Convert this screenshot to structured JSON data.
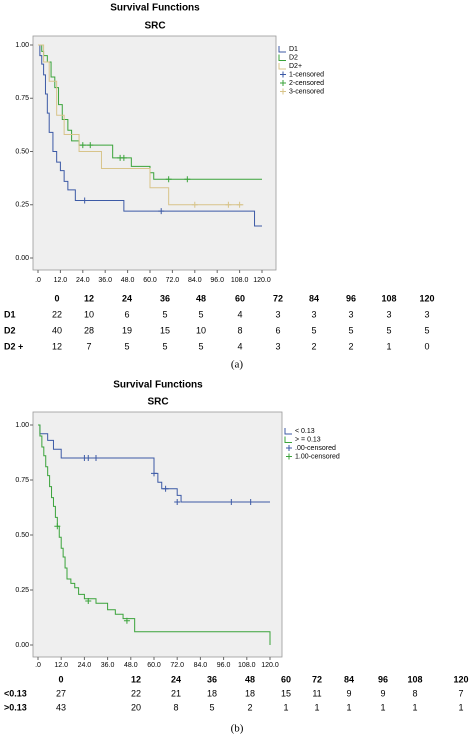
{
  "chart_data": [
    {
      "type": "step",
      "title": "Survival Functions",
      "subtitle": "SRC",
      "xlim": [
        0,
        120
      ],
      "ylim": [
        0,
        1
      ],
      "xticks": [
        {
          "value": 0,
          "label": ".0"
        },
        {
          "value": 12,
          "label": "12.0"
        },
        {
          "value": 24,
          "label": "24.0"
        },
        {
          "value": 36,
          "label": "36.0"
        },
        {
          "value": 48,
          "label": "48.0"
        },
        {
          "value": 60,
          "label": "60.0"
        },
        {
          "value": 72,
          "label": "72.0"
        },
        {
          "value": 84,
          "label": "84.0"
        },
        {
          "value": 96,
          "label": "96.0"
        },
        {
          "value": 108,
          "label": "108.0"
        },
        {
          "value": 120,
          "label": "120.0"
        }
      ],
      "yticks": [
        {
          "value": 0,
          "label": "0.00"
        },
        {
          "value": 0.25,
          "label": "0.25"
        },
        {
          "value": 0.5,
          "label": "0.50"
        },
        {
          "value": 0.75,
          "label": "0.75"
        },
        {
          "value": 1,
          "label": "1.00"
        }
      ],
      "grid": false,
      "legend": "right",
      "series": [
        {
          "name": "D1",
          "color": "#3c5aa6",
          "x": [
            0,
            1,
            2,
            3,
            4,
            5,
            6,
            8,
            10,
            12,
            14,
            16,
            20,
            46,
            116,
            120
          ],
          "values": [
            1,
            0.95,
            0.91,
            0.86,
            0.77,
            0.68,
            0.59,
            0.5,
            0.45,
            0.41,
            0.36,
            0.32,
            0.27,
            0.22,
            0.15,
            0.15
          ]
        },
        {
          "name": "D2",
          "color": "#3aa33a",
          "x": [
            0,
            2,
            3,
            5,
            7,
            9,
            11,
            13,
            16,
            18,
            22,
            40,
            50,
            60,
            62,
            120
          ],
          "values": [
            1,
            0.97,
            0.95,
            0.92,
            0.85,
            0.8,
            0.72,
            0.65,
            0.6,
            0.55,
            0.53,
            0.47,
            0.43,
            0.4,
            0.37,
            0.37
          ]
        },
        {
          "name": "D2+",
          "color": "#d8c48a",
          "x": [
            0,
            3,
            6,
            10,
            14,
            22,
            34,
            60,
            70,
            110
          ],
          "values": [
            1,
            0.92,
            0.83,
            0.67,
            0.58,
            0.5,
            0.42,
            0.33,
            0.25,
            0.25
          ]
        },
        {
          "name": "1-censored",
          "color": "#3c5aa6",
          "marker": "+",
          "x": [
            25,
            66
          ],
          "values": [
            0.27,
            0.22
          ]
        },
        {
          "name": "2-censored",
          "color": "#3aa33a",
          "marker": "+",
          "x": [
            24,
            28,
            44,
            46,
            70,
            80
          ],
          "values": [
            0.53,
            0.53,
            0.47,
            0.47,
            0.37,
            0.37
          ]
        },
        {
          "name": "3-censored",
          "color": "#d8c48a",
          "marker": "+",
          "x": [
            84,
            102,
            108
          ],
          "values": [
            0.25,
            0.25,
            0.25
          ]
        }
      ]
    },
    {
      "type": "step",
      "title": "Survival Functions",
      "subtitle": "SRC",
      "xlim": [
        0,
        120
      ],
      "ylim": [
        0,
        1
      ],
      "xticks": [
        {
          "value": 0,
          "label": ".0"
        },
        {
          "value": 12,
          "label": "12.0"
        },
        {
          "value": 24,
          "label": "24.0"
        },
        {
          "value": 36,
          "label": "36.0"
        },
        {
          "value": 48,
          "label": "48.0"
        },
        {
          "value": 60,
          "label": "60.0"
        },
        {
          "value": 72,
          "label": "72.0"
        },
        {
          "value": 84,
          "label": "84.0"
        },
        {
          "value": 96,
          "label": "96.0"
        },
        {
          "value": 108,
          "label": "108.0"
        },
        {
          "value": 120,
          "label": "120.0"
        }
      ],
      "yticks": [
        {
          "value": 0,
          "label": "0.00"
        },
        {
          "value": 0.25,
          "label": "0.25"
        },
        {
          "value": 0.5,
          "label": "0.50"
        },
        {
          "value": 0.75,
          "label": "0.75"
        },
        {
          "value": 1,
          "label": "1.00"
        }
      ],
      "grid": false,
      "legend": "right",
      "series": [
        {
          "name": "< 0.13",
          "color": "#3c5aa6",
          "x": [
            0,
            1,
            5,
            8,
            12,
            60,
            62,
            64,
            72,
            74,
            120
          ],
          "values": [
            1,
            0.96,
            0.93,
            0.89,
            0.85,
            0.78,
            0.74,
            0.71,
            0.68,
            0.65,
            0.65
          ]
        },
        {
          "name": "> = 0.13",
          "color": "#3aa33a",
          "x": [
            0,
            1,
            2,
            3,
            4,
            5,
            6,
            7,
            8,
            9,
            10,
            11,
            12,
            13,
            14,
            15,
            17,
            19,
            21,
            24,
            30,
            36,
            40,
            44,
            50,
            120
          ],
          "values": [
            1,
            0.95,
            0.9,
            0.86,
            0.81,
            0.77,
            0.72,
            0.67,
            0.63,
            0.58,
            0.54,
            0.49,
            0.44,
            0.4,
            0.35,
            0.3,
            0.28,
            0.26,
            0.23,
            0.21,
            0.19,
            0.16,
            0.14,
            0.12,
            0.06,
            0
          ]
        },
        {
          "name": ".00-censored",
          "color": "#3c5aa6",
          "marker": "+",
          "x": [
            24,
            26,
            30,
            60,
            66,
            72,
            100,
            110
          ],
          "values": [
            0.85,
            0.85,
            0.85,
            0.78,
            0.71,
            0.65,
            0.65,
            0.65
          ]
        },
        {
          "name": "1.00-censored",
          "color": "#3aa33a",
          "marker": "+",
          "x": [
            10,
            26,
            46
          ],
          "values": [
            0.54,
            0.2,
            0.11
          ]
        }
      ]
    }
  ],
  "risk_tables": [
    {
      "times": [
        0,
        12,
        24,
        36,
        48,
        60,
        72,
        84,
        96,
        108,
        120
      ],
      "rows": [
        {
          "label": "D1",
          "counts": [
            22,
            10,
            6,
            5,
            5,
            4,
            3,
            3,
            3,
            3,
            3
          ]
        },
        {
          "label": "D2",
          "counts": [
            40,
            28,
            19,
            15,
            10,
            8,
            6,
            5,
            5,
            5,
            5
          ]
        },
        {
          "label": "D2 +",
          "counts": [
            12,
            7,
            5,
            5,
            5,
            4,
            3,
            2,
            2,
            1,
            0
          ]
        }
      ]
    },
    {
      "times": [
        0,
        12,
        24,
        36,
        48,
        60,
        72,
        84,
        96,
        108,
        120
      ],
      "rows": [
        {
          "label": "<0.13",
          "counts": [
            27,
            22,
            21,
            18,
            18,
            15,
            11,
            9,
            9,
            8,
            7
          ]
        },
        {
          "label": ">0.13",
          "counts": [
            43,
            20,
            8,
            5,
            2,
            1,
            1,
            1,
            1,
            1,
            1
          ]
        }
      ]
    }
  ],
  "captions": [
    "(a)",
    "(b)"
  ]
}
